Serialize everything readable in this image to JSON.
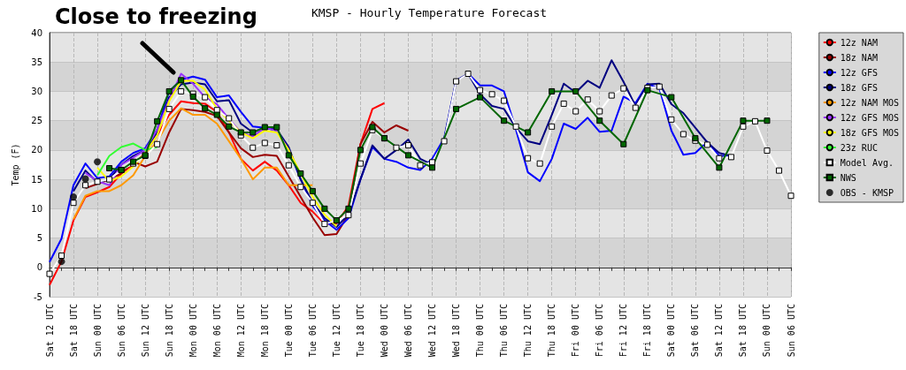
{
  "chart_data": {
    "type": "line",
    "title": "KMSP - Hourly Temperature Forecast",
    "ylabel": "Temp (F)",
    "annotations": [
      "Close to freezing"
    ],
    "categories": [
      "Sat 12 UTC",
      null,
      "Sat 18 UTC",
      null,
      "Sun 00 UTC",
      null,
      "Sun 06 UTC",
      null,
      "Sun 12 UTC",
      null,
      "Sun 18 UTC",
      null,
      "Mon 00 UTC",
      null,
      "Mon 06 UTC",
      null,
      "Mon 12 UTC",
      null,
      "Mon 18 UTC",
      null,
      "Tue 00 UTC",
      null,
      "Tue 06 UTC",
      null,
      "Tue 12 UTC",
      null,
      "Tue 18 UTC",
      null,
      "Wed 00 UTC",
      null,
      "Wed 06 UTC",
      null,
      "Wed 12 UTC",
      null,
      "Wed 18 UTC",
      null,
      "Thu 00 UTC",
      null,
      "Thu 06 UTC",
      null,
      "Thu 12 UTC",
      null,
      "Thu 18 UTC",
      null,
      "Fri 00 UTC",
      null,
      "Fri 06 UTC",
      null,
      "Fri 12 UTC",
      null,
      "Fri 18 UTC",
      null,
      "Sat 00 UTC",
      null,
      "Sat 06 UTC",
      null,
      "Sat 12 UTC",
      null,
      "Sat 18 UTC",
      null,
      "Sun 00 UTC",
      null,
      "Sun 06 UTC"
    ],
    "ylim": [
      -5,
      40
    ],
    "yticks": [
      -5,
      0,
      5,
      10,
      15,
      20,
      25,
      30,
      35,
      40
    ],
    "grid": true,
    "legend": "right",
    "line_style": "solid",
    "series": [
      {
        "name": "12z NAM",
        "color": "#ff0000",
        "marker": "none",
        "values": [
          -3,
          1,
          8,
          12,
          12.8,
          13.7,
          16,
          17.5,
          19.5,
          22.5,
          26,
          28.3,
          28,
          27.9,
          26.5,
          23,
          18.5,
          16.5,
          18,
          16.5,
          14,
          11,
          9.5,
          7.4,
          7.5,
          10.5,
          21,
          27,
          28,
          null,
          null,
          null,
          null,
          null,
          null,
          null,
          null,
          null,
          null,
          null,
          null,
          null,
          null,
          null,
          null,
          null,
          null,
          null,
          null,
          null,
          null,
          null,
          null,
          null,
          null,
          null,
          null,
          null,
          null,
          null,
          null,
          null,
          null
        ]
      },
      {
        "name": "18z NAM",
        "color": "#990000",
        "marker": "none",
        "values": [
          null,
          null,
          null,
          13.5,
          14.2,
          15,
          16,
          18,
          17.2,
          18,
          23,
          27,
          26.8,
          26.5,
          25.8,
          23,
          20.3,
          18.8,
          19.2,
          19,
          15.5,
          12,
          8.5,
          5.5,
          5.7,
          9,
          21,
          24.8,
          23,
          24.2,
          23.3,
          null,
          null,
          null,
          null,
          null,
          null,
          null,
          null,
          null,
          null,
          null,
          null,
          null,
          null,
          null,
          null,
          null,
          null,
          null,
          null,
          null,
          null,
          null,
          null,
          null,
          null,
          null,
          null,
          null,
          null,
          null,
          null
        ]
      },
      {
        "name": "12z GFS",
        "color": "#0000ff",
        "marker": "none",
        "values": [
          0.9,
          4.9,
          14,
          17.7,
          15.2,
          15.5,
          18,
          19.5,
          20.3,
          23.5,
          30,
          32,
          32.5,
          32,
          29,
          29.3,
          26.5,
          24,
          23.8,
          23.3,
          20,
          15,
          10.5,
          8,
          6.4,
          8.4,
          15,
          20.5,
          18.5,
          18,
          17,
          16.6,
          18.5,
          22,
          31.8,
          33,
          31,
          31,
          30,
          23.5,
          16.2,
          14.7,
          18.5,
          24.5,
          23.6,
          25.5,
          23.1,
          23.3,
          29.1,
          28,
          31.3,
          30.5,
          23.3,
          19.2,
          19.5,
          21.4,
          19,
          19,
          null,
          null,
          null,
          null,
          null
        ]
      },
      {
        "name": "18z GFS",
        "color": "#000080",
        "marker": "none",
        "values": [
          null,
          null,
          13,
          16.5,
          14.5,
          15,
          17.5,
          19,
          20,
          23,
          29,
          31.2,
          31.5,
          31.2,
          28.3,
          28.5,
          24.5,
          23,
          23.8,
          23.5,
          20.5,
          15,
          11,
          8.4,
          6.9,
          9,
          15,
          20.8,
          18.5,
          20,
          21.8,
          18.5,
          17.5,
          21.8,
          31.8,
          33,
          29.5,
          27.5,
          27,
          23.8,
          21.5,
          21,
          26,
          31.3,
          29.8,
          31.8,
          30.6,
          35.3,
          31.6,
          27.5,
          31.2,
          31.3,
          27.8,
          26.3,
          23.8,
          21.3,
          19.5,
          19,
          null,
          null,
          null,
          null,
          null
        ]
      },
      {
        "name": "12z NAM MOS",
        "color": "#ff9900",
        "marker": "none",
        "values": [
          null,
          null,
          8.2,
          12.2,
          13,
          13,
          14,
          15.7,
          19,
          21.5,
          25,
          27.1,
          26,
          26,
          24.5,
          21.5,
          18.5,
          15,
          17,
          17,
          14,
          14,
          14,
          null,
          null,
          null,
          null,
          null,
          null,
          null,
          null,
          null,
          null,
          null,
          null,
          null,
          null,
          null,
          null,
          null,
          null,
          null,
          null,
          null,
          null,
          null,
          null,
          null,
          null,
          null,
          null,
          null,
          null,
          null,
          null,
          null,
          null,
          null,
          null,
          null,
          null,
          null,
          null
        ]
      },
      {
        "name": "12z GFS MOS",
        "color": "#9933ff",
        "marker": "none",
        "values": [
          null,
          null,
          null,
          16.1,
          14.7,
          14,
          17.5,
          18.7,
          20,
          23.5,
          28.5,
          33,
          31.3,
          29,
          27.8,
          25.3,
          23,
          22.3,
          23.8,
          23.3,
          20,
          null,
          null,
          null,
          null,
          null,
          null,
          null,
          null,
          null,
          null,
          null,
          null,
          null,
          null,
          null,
          null,
          null,
          null,
          null,
          null,
          null,
          null,
          null,
          null,
          null,
          null,
          null,
          null,
          null,
          null,
          null,
          null,
          null,
          null,
          null,
          null,
          null,
          null,
          null,
          null,
          null,
          null
        ]
      },
      {
        "name": "18z GFS MOS",
        "color": "#ffff00",
        "marker": "none",
        "values": [
          null,
          null,
          null,
          null,
          17,
          14.7,
          15.5,
          17.2,
          19.5,
          22.5,
          28.3,
          31.8,
          31.8,
          30.3,
          27,
          25,
          23,
          22,
          23.3,
          23,
          20,
          16,
          12,
          9,
          7,
          null,
          null,
          null,
          null,
          null,
          null,
          null,
          null,
          null,
          null,
          null,
          null,
          null,
          null,
          null,
          null,
          null,
          null,
          null,
          null,
          null,
          null,
          null,
          null,
          null,
          null,
          null,
          null,
          null,
          null,
          null,
          null,
          null,
          null,
          null,
          null,
          null,
          null
        ]
      },
      {
        "name": "23z RUC",
        "color": "#33ff33",
        "marker": "none",
        "values": [
          null,
          null,
          null,
          null,
          15.7,
          19,
          20.5,
          21.1,
          20,
          20.5,
          null,
          null,
          null,
          null,
          null,
          null,
          null,
          null,
          null,
          null,
          null,
          null,
          null,
          null,
          null,
          null,
          null,
          null,
          null,
          null,
          null,
          null,
          null,
          null,
          null,
          null,
          null,
          null,
          null,
          null,
          null,
          null,
          null,
          null,
          null,
          null,
          null,
          null,
          null,
          null,
          null,
          null,
          null,
          null,
          null,
          null,
          null,
          null,
          null,
          null,
          null,
          null,
          null
        ]
      },
      {
        "name": "Model Avg.",
        "color": "#ffffff",
        "marker": "square",
        "values": [
          -1.1,
          2,
          11,
          14,
          14.6,
          15,
          16.6,
          17.7,
          19,
          21,
          27,
          30,
          29.6,
          29,
          26.8,
          25.4,
          22.5,
          20.4,
          21.2,
          20.8,
          17.4,
          13.7,
          11,
          7.4,
          8,
          8.9,
          17.7,
          23.4,
          22,
          20.4,
          20.8,
          17.4,
          17.9,
          21.5,
          31.7,
          33,
          30.2,
          29.5,
          28.4,
          24,
          18.6,
          17.7,
          24,
          27.9,
          26.6,
          28.6,
          26.6,
          29.3,
          30.5,
          27.2,
          30.6,
          30.8,
          25.2,
          22.7,
          21.6,
          20.9,
          18.6,
          18.8,
          24,
          24.9,
          19.9,
          16.5,
          12.2
        ]
      },
      {
        "name": "NWS",
        "color": "#006600",
        "marker": "square",
        "values": [
          null,
          null,
          null,
          null,
          null,
          16.9,
          16.6,
          18,
          19.1,
          24.9,
          30,
          31.9,
          29.1,
          27.1,
          26,
          24,
          23,
          23,
          23.9,
          23.9,
          19.1,
          16,
          13,
          10,
          8,
          10,
          20,
          23.9,
          22,
          null,
          19.1,
          null,
          17,
          null,
          27,
          null,
          29,
          null,
          25,
          null,
          23,
          null,
          30,
          null,
          30,
          null,
          25,
          null,
          21,
          null,
          30.2,
          null,
          29,
          null,
          22,
          null,
          17,
          null,
          25,
          null,
          25,
          null,
          null
        ]
      },
      {
        "name": "OBS - KMSP",
        "type": "scatter",
        "color": "#000000",
        "marker": "circle",
        "values": [
          null,
          1,
          12,
          15.1,
          18,
          null,
          null,
          null,
          null,
          null,
          null,
          null,
          null,
          null,
          null,
          null,
          null,
          null,
          null,
          null,
          null,
          null,
          null,
          null,
          null,
          null,
          null,
          null,
          null,
          null,
          null,
          null,
          null,
          null,
          null,
          null,
          null,
          null,
          null,
          null,
          null,
          null,
          null,
          null,
          null,
          null,
          null,
          null,
          null,
          null,
          null,
          null,
          null,
          null,
          null,
          null,
          null,
          null,
          null,
          null,
          null,
          null,
          null
        ]
      }
    ]
  }
}
